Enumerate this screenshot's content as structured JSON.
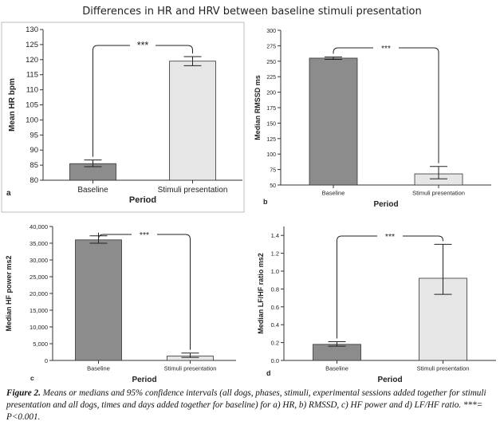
{
  "title": "Differences in HR and HRV between baseline stimuli presentation",
  "caption": {
    "label": "Figure 2.",
    "text": " Means or medians and 95% confidence intervals (all dogs, phases, stimuli, experimental sessions added together for stimuli presentation and all dogs, times and days added together for baseline) for a) HR, b) RMSSD, c) HF power and d) LF/HF ratio. ***= P<0.001."
  },
  "colors": {
    "baseline_bar": "#8c8c8c",
    "stimuli_bar": "#e6e6e6",
    "axis": "#333333"
  },
  "chart_data": [
    {
      "panel_label": "a",
      "type": "bar",
      "categories": [
        "Baseline",
        "Stimuli presentation"
      ],
      "values": [
        85.5,
        119.5
      ],
      "ci_low": [
        84.5,
        118.0
      ],
      "ci_high": [
        86.7,
        121.0
      ],
      "ylabel": "Mean HR bpm",
      "xlabel": "Period",
      "ylim": [
        80,
        130
      ],
      "yticks": [
        80,
        85,
        90,
        95,
        100,
        105,
        110,
        115,
        120,
        125,
        130
      ],
      "ytick_labels": [
        "80",
        "85",
        "90",
        "95",
        "100",
        "105",
        "110",
        "115",
        "120",
        "125",
        "130"
      ],
      "significance": "***"
    },
    {
      "panel_label": "b",
      "type": "bar",
      "categories": [
        "Baseline",
        "Stimuli presentation"
      ],
      "values": [
        255,
        68
      ],
      "ci_low": [
        253,
        60
      ],
      "ci_high": [
        257,
        80
      ],
      "ylabel": "Median RMSSD ms",
      "xlabel": "Period",
      "ylim": [
        50,
        300
      ],
      "yticks": [
        50,
        75,
        100,
        125,
        150,
        175,
        200,
        225,
        250,
        275,
        300
      ],
      "ytick_labels": [
        "50",
        "75",
        "100",
        "125",
        "150",
        "175",
        "200",
        "225",
        "250",
        "275",
        "300"
      ],
      "significance": "***"
    },
    {
      "panel_label": "c",
      "type": "bar",
      "categories": [
        "Baseline",
        "Stimuli presentation"
      ],
      "values": [
        36000,
        1300
      ],
      "ci_low": [
        35000,
        900
      ],
      "ci_high": [
        37200,
        2200
      ],
      "ylabel": "Median HF power ms2",
      "xlabel": "Period",
      "ylim": [
        0,
        40000
      ],
      "yticks": [
        0,
        5000,
        10000,
        15000,
        20000,
        25000,
        30000,
        35000,
        40000
      ],
      "ytick_labels": [
        "0",
        "5,000",
        "10,000",
        "15,000",
        "20,000",
        "25,000",
        "30,000",
        "35,000",
        "40,000"
      ],
      "significance": "***"
    },
    {
      "panel_label": "d",
      "type": "bar",
      "categories": [
        "Baseline",
        "Stimuli presentation"
      ],
      "values": [
        0.18,
        0.92
      ],
      "ci_low": [
        0.16,
        0.74
      ],
      "ci_high": [
        0.21,
        1.3
      ],
      "ylabel": "Median LF/HF ratio ms2",
      "xlabel": "Period",
      "ylim": [
        0,
        1.5
      ],
      "yticks": [
        0,
        0.2,
        0.4,
        0.6,
        0.8,
        1.0,
        1.2,
        1.4
      ],
      "ytick_labels": [
        "0.0",
        "0.2",
        "0.4",
        "0.6",
        "0.8",
        "1.0",
        "1.2",
        "1.4"
      ],
      "significance": "***"
    }
  ]
}
